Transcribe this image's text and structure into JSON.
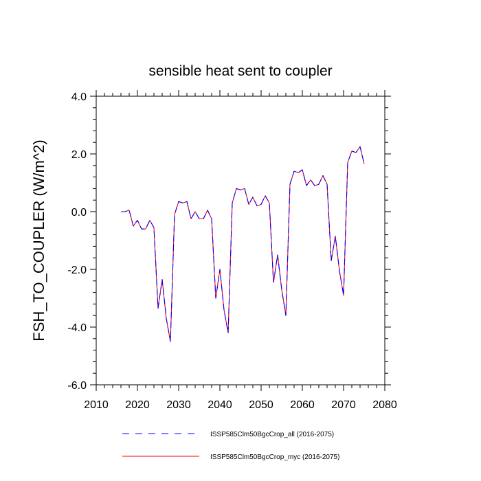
{
  "chart_data": {
    "type": "line",
    "title": "sensible heat sent to coupler",
    "xlabel": "",
    "ylabel": "FSH_TO_COUPLER  (W/m^2)",
    "xlim": [
      2010,
      2080
    ],
    "ylim": [
      -6.0,
      4.0
    ],
    "x_ticks": [
      2010,
      2020,
      2030,
      2040,
      2050,
      2060,
      2070,
      2080
    ],
    "x_tick_labels": [
      "2010",
      "2020",
      "2030",
      "2040",
      "2050",
      "2060",
      "2070",
      "2080"
    ],
    "y_ticks": [
      -6,
      -4,
      -2,
      0,
      2,
      4
    ],
    "y_tick_labels": [
      "-6.0",
      "-4.0",
      "-2.0",
      "0.0",
      "2.0",
      "4.0"
    ],
    "grid": false,
    "legend_position": "bottom",
    "x": [
      2016,
      2017,
      2018,
      2019,
      2020,
      2021,
      2022,
      2023,
      2024,
      2025,
      2026,
      2027,
      2028,
      2029,
      2030,
      2031,
      2032,
      2033,
      2034,
      2035,
      2036,
      2037,
      2038,
      2039,
      2040,
      2041,
      2042,
      2043,
      2044,
      2045,
      2046,
      2047,
      2048,
      2049,
      2050,
      2051,
      2052,
      2053,
      2054,
      2055,
      2056,
      2057,
      2058,
      2059,
      2060,
      2061,
      2062,
      2063,
      2064,
      2065,
      2066,
      2067,
      2068,
      2069,
      2070,
      2071,
      2072,
      2073,
      2074,
      2075
    ],
    "series": [
      {
        "name": "ISSP585Clm50BgcCrop_all (2016-2075)",
        "color": "#0000ff",
        "dash": "dashed",
        "values": [
          0.0,
          0.0,
          0.05,
          -0.5,
          -0.3,
          -0.6,
          -0.6,
          -0.3,
          -0.55,
          -3.35,
          -2.35,
          -3.7,
          -4.5,
          -0.1,
          0.35,
          0.3,
          0.35,
          -0.25,
          0.0,
          -0.25,
          -0.25,
          0.05,
          -0.25,
          -3.0,
          -2.0,
          -3.4,
          -4.2,
          0.3,
          0.8,
          0.75,
          0.8,
          0.25,
          0.5,
          0.2,
          0.25,
          0.55,
          0.3,
          -2.45,
          -1.5,
          -2.7,
          -3.6,
          0.95,
          1.4,
          1.35,
          1.45,
          0.9,
          1.1,
          0.9,
          0.95,
          1.25,
          0.95,
          -1.7,
          -0.85,
          -2.05,
          -2.9,
          1.7,
          2.1,
          2.05,
          2.25,
          1.65
        ]
      },
      {
        "name": "ISSP585Clm50BgcCrop_myc (2016-2075)",
        "color": "#ff0000",
        "dash": "solid",
        "values": [
          0.0,
          0.0,
          0.05,
          -0.5,
          -0.3,
          -0.6,
          -0.6,
          -0.3,
          -0.55,
          -3.35,
          -2.35,
          -3.7,
          -4.5,
          -0.1,
          0.35,
          0.3,
          0.35,
          -0.25,
          0.0,
          -0.25,
          -0.25,
          0.05,
          -0.25,
          -3.0,
          -2.0,
          -3.4,
          -4.2,
          0.3,
          0.8,
          0.75,
          0.8,
          0.25,
          0.5,
          0.2,
          0.25,
          0.55,
          0.3,
          -2.45,
          -1.5,
          -2.7,
          -3.6,
          0.95,
          1.4,
          1.35,
          1.45,
          0.9,
          1.1,
          0.9,
          0.95,
          1.25,
          0.95,
          -1.7,
          -0.85,
          -2.05,
          -2.9,
          1.7,
          2.1,
          2.05,
          2.25,
          1.65
        ]
      }
    ]
  }
}
